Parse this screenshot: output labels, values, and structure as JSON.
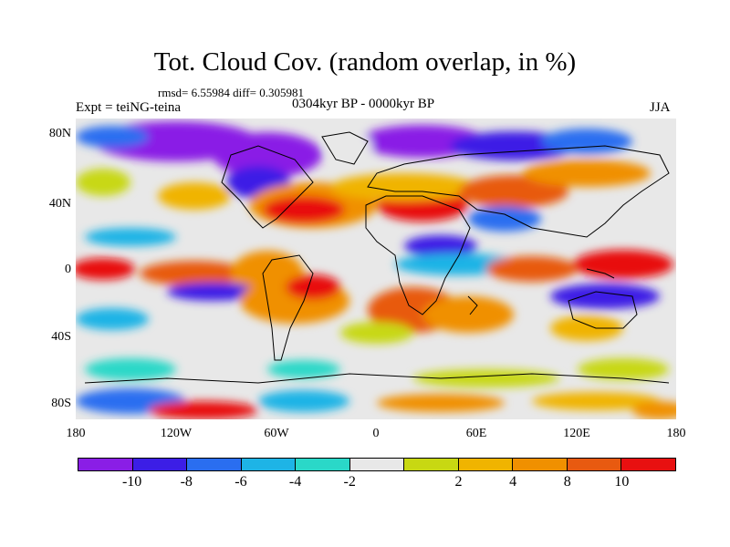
{
  "title": "Tot. Cloud Cov. (random overlap, in %)",
  "stats": "rmsd= 6.55984 diff= 0.305981",
  "experiment": "Expt = teiNG-teina",
  "period": "0304kyr BP - 0000kyr BP",
  "season": "JJA",
  "map": {
    "lat_ticks": [
      "80N",
      "40N",
      "0",
      "40S",
      "80S"
    ],
    "lon_ticks": [
      "180",
      "120W",
      "60W",
      "0",
      "60E",
      "120E",
      "180"
    ]
  },
  "colorbar": {
    "colors": [
      "#8a1ee6",
      "#3c1ee6",
      "#2a6ef0",
      "#1eb4e6",
      "#2ad8c8",
      "#e8e8e8",
      "#c8d812",
      "#f0b400",
      "#f09000",
      "#e85a10",
      "#e81010"
    ],
    "labels": [
      "-10",
      "-8",
      "-6",
      "-4",
      "-2",
      "2",
      "4",
      "8",
      "10"
    ]
  }
}
